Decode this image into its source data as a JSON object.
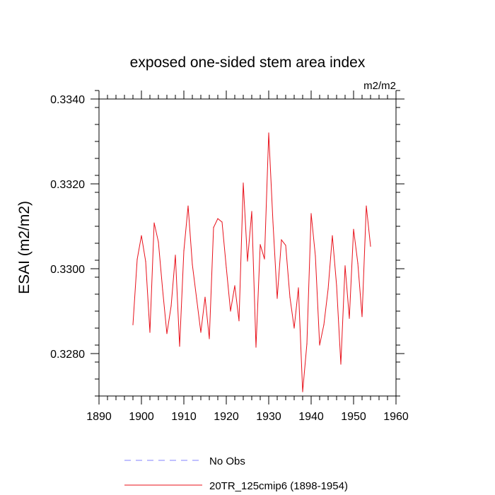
{
  "chart_data": {
    "type": "line",
    "title": "exposed one-sided stem area index",
    "units": "m2/m2",
    "xlabel": "",
    "ylabel": "ESAI  (m2/m2)",
    "xlim": [
      1890,
      1960
    ],
    "ylim": [
      0.327,
      0.334
    ],
    "x_major_ticks": [
      1890,
      1900,
      1910,
      1920,
      1930,
      1940,
      1950,
      1960
    ],
    "x_tick_labels": [
      "1890",
      "1900",
      "1910",
      "1920",
      "1930",
      "1940",
      "1950",
      "1960"
    ],
    "y_major_ticks": [
      0.328,
      0.33,
      0.332,
      0.334
    ],
    "y_tick_labels": [
      "0.3280",
      "0.3300",
      "0.3320",
      "0.3340"
    ],
    "x_minor_step": 2,
    "y_minor_step": 0.0004,
    "grid": false,
    "legend_position": "bottom-left",
    "series": [
      {
        "name": "No Obs",
        "color": "#8080ff",
        "style": "dashed",
        "x": [],
        "values": []
      },
      {
        "name": "20TR_125cmip6 (1898-1954)",
        "color": "#e8101a",
        "style": "solid",
        "x": [
          1898,
          1899,
          1900,
          1901,
          1902,
          1903,
          1904,
          1905,
          1906,
          1907,
          1908,
          1909,
          1910,
          1911,
          1912,
          1913,
          1914,
          1915,
          1916,
          1917,
          1918,
          1919,
          1920,
          1921,
          1922,
          1923,
          1924,
          1925,
          1926,
          1927,
          1928,
          1929,
          1930,
          1931,
          1932,
          1933,
          1934,
          1935,
          1936,
          1937,
          1938,
          1939,
          1940,
          1941,
          1942,
          1943,
          1944,
          1945,
          1946,
          1947,
          1948,
          1949,
          1950,
          1951,
          1952,
          1953,
          1954
        ],
        "values": [
          0.32868,
          0.33022,
          0.33078,
          0.33017,
          0.3285,
          0.33108,
          0.33063,
          0.3295,
          0.32847,
          0.32912,
          0.33032,
          0.32817,
          0.33042,
          0.33148,
          0.3301,
          0.3293,
          0.3285,
          0.32933,
          0.32835,
          0.33097,
          0.33118,
          0.3311,
          0.33003,
          0.329,
          0.3296,
          0.32877,
          0.33202,
          0.33018,
          0.33135,
          0.32815,
          0.33057,
          0.33023,
          0.3332,
          0.3311,
          0.3293,
          0.33068,
          0.33055,
          0.32933,
          0.3286,
          0.32955,
          0.3271,
          0.32823,
          0.3313,
          0.3303,
          0.3282,
          0.32868,
          0.32952,
          0.33078,
          0.3296,
          0.32775,
          0.33007,
          0.32883,
          0.33093,
          0.33013,
          0.32887,
          0.33148,
          0.33053
        ]
      }
    ]
  }
}
